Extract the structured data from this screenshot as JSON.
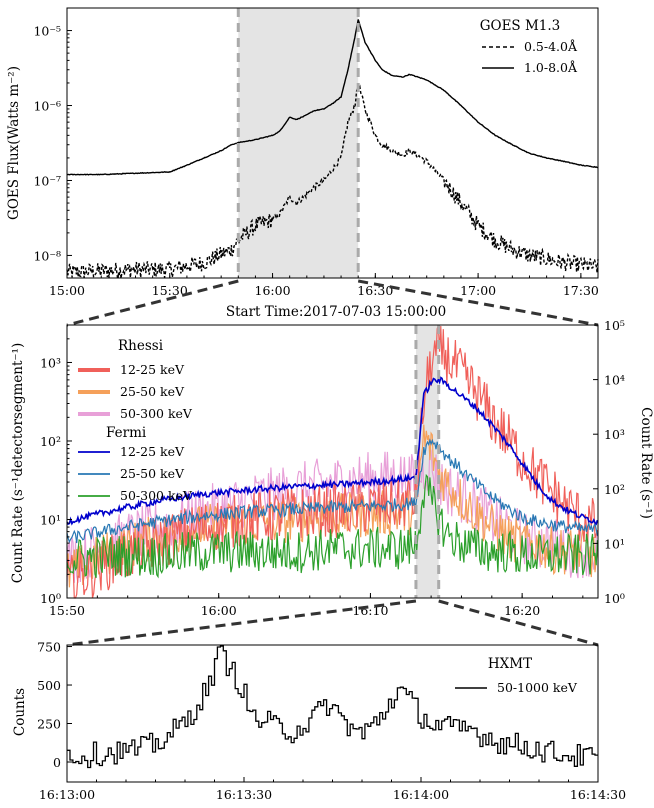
{
  "chart_data": [
    {
      "type": "line",
      "title": "",
      "xlabel": "Start Time:2017-07-03 15:00:00",
      "ylabel": "GOES Flux(Watts m⁻²)",
      "yscale": "log",
      "ylim": [
        5e-09,
        2e-05
      ],
      "xlim": [
        "15:00",
        "17:35"
      ],
      "x_ticks": [
        "15:00",
        "15:30",
        "16:00",
        "16:30",
        "17:00",
        "17:30"
      ],
      "y_ticks": [
        "10⁻⁸",
        "10⁻⁷",
        "10⁻⁶",
        "10⁻⁵"
      ],
      "legend_title": "GOES M1.3",
      "legend_position": "top-right",
      "highlight_span": [
        "15:50",
        "16:25"
      ],
      "x_unit": "minutes after 15:00",
      "series": [
        {
          "name": "0.5-4.0Å",
          "style": "dashed",
          "x": [
            0,
            10,
            20,
            30,
            40,
            48,
            50,
            55,
            60,
            62,
            64,
            65,
            67,
            70,
            72,
            75,
            78,
            80,
            82,
            84,
            85,
            87,
            90,
            92,
            95,
            98,
            100,
            105,
            110,
            115,
            120,
            125,
            130,
            135,
            140,
            145,
            150,
            155
          ],
          "values": [
            6e-09,
            6.2e-09,
            6.5e-09,
            6.5e-09,
            8e-09,
            1.2e-08,
            1.6e-08,
            2.5e-08,
            3e-08,
            3.5e-08,
            5e-08,
            6e-08,
            5e-08,
            6.5e-08,
            8e-08,
            1e-07,
            1.5e-07,
            2e-07,
            6e-07,
            1e-06,
            2e-06,
            9e-07,
            4e-07,
            3e-07,
            2.5e-07,
            2.2e-07,
            2.5e-07,
            1.8e-07,
            1e-07,
            5e-08,
            2.5e-08,
            1.6e-08,
            1.2e-08,
            1e-08,
            9e-09,
            8e-09,
            7.5e-09,
            7e-09
          ]
        },
        {
          "name": "1.0-8.0Å",
          "style": "solid",
          "x": [
            0,
            10,
            20,
            30,
            35,
            40,
            45,
            48,
            50,
            55,
            60,
            62,
            64,
            65,
            67,
            70,
            72,
            75,
            78,
            80,
            82,
            84,
            85,
            87,
            90,
            92,
            95,
            98,
            100,
            105,
            110,
            115,
            120,
            125,
            130,
            135,
            140,
            145,
            150,
            155
          ],
          "values": [
            1.2e-07,
            1.2e-07,
            1.25e-07,
            1.3e-07,
            1.6e-07,
            2e-07,
            2.5e-07,
            3e-07,
            3.2e-07,
            3.5e-07,
            4e-07,
            4.5e-07,
            6e-07,
            7e-07,
            6.5e-07,
            7.5e-07,
            8.5e-07,
            9e-07,
            1.1e-06,
            1.3e-06,
            3e-06,
            8e-06,
            1.4e-05,
            7e-06,
            4e-06,
            3e-06,
            2.5e-06,
            2.4e-06,
            2.6e-06,
            2.2e-06,
            1.6e-06,
            1e-06,
            6e-07,
            4e-07,
            3e-07,
            2.3e-07,
            2e-07,
            1.8e-07,
            1.6e-07,
            1.5e-07
          ]
        }
      ]
    },
    {
      "type": "line",
      "title": "",
      "xlabel": "",
      "ylabel": "Count Rate (s⁻¹detectorsegment⁻¹)",
      "y2label": "Count Rate (s⁻¹)",
      "yscale": "log",
      "ylim": [
        1,
        3000
      ],
      "y2lim": [
        1,
        100000
      ],
      "xlim": [
        "15:50",
        "16:25"
      ],
      "x_ticks": [
        "15:50",
        "16:00",
        "16:10",
        "16:20"
      ],
      "y_ticks": [
        "10⁰",
        "10¹",
        "10²",
        "10³"
      ],
      "y2_ticks": [
        "10⁰",
        "10¹",
        "10²",
        "10³",
        "10⁴",
        "10⁵"
      ],
      "legend_position": "top-left",
      "highlight_span": [
        "16:13",
        "16:14:30"
      ],
      "x_unit": "minutes after 15:50",
      "legend_groups": [
        "Rhessi",
        "Fermi"
      ],
      "series": [
        {
          "group": "Rhessi",
          "name": "12-25 keV",
          "color": "#f0605a",
          "axis": "left",
          "x": [
            0,
            3,
            6,
            9,
            12,
            15,
            18,
            21,
            22,
            23,
            23.5,
            24,
            24.5,
            25,
            26,
            27,
            28,
            29,
            30,
            31,
            32,
            33,
            34,
            35
          ],
          "values": [
            1.5,
            3,
            5,
            8,
            10,
            12,
            13,
            15,
            16,
            18,
            300,
            1000,
            1400,
            1200,
            700,
            400,
            200,
            110,
            60,
            35,
            22,
            14,
            10,
            8
          ]
        },
        {
          "group": "Rhessi",
          "name": "25-50 keV",
          "color": "#f5a05a",
          "axis": "left",
          "x": [
            0,
            3,
            6,
            9,
            12,
            15,
            18,
            21,
            22,
            23,
            23.5,
            24,
            24.5,
            25,
            26,
            27,
            28,
            29,
            30,
            31,
            32,
            33,
            34,
            35
          ],
          "values": [
            2,
            4,
            6,
            8,
            9,
            10,
            11,
            12,
            12,
            13,
            110,
            80,
            40,
            30,
            18,
            12,
            8,
            6,
            5,
            5,
            4,
            4,
            4,
            3
          ]
        },
        {
          "group": "Rhessi",
          "name": "50-300 keV",
          "color": "#e8a0d8",
          "axis": "left",
          "x": [
            0,
            3,
            6,
            9,
            12,
            15,
            18,
            21,
            22,
            23,
            23.5,
            24,
            24.5,
            25,
            26,
            27,
            28,
            29,
            30,
            31,
            32,
            33,
            34,
            35
          ],
          "values": [
            3,
            5,
            8,
            12,
            18,
            24,
            30,
            35,
            35,
            30,
            45,
            50,
            30,
            25,
            20,
            15,
            10,
            8,
            6,
            5,
            5,
            4,
            4,
            4
          ]
        },
        {
          "group": "Fermi",
          "name": "12-25 keV",
          "color": "#0000cc",
          "axis": "right",
          "x": [
            0,
            3,
            6,
            9,
            12,
            15,
            18,
            21,
            22,
            23,
            23.5,
            24,
            24.5,
            25,
            26,
            27,
            28,
            29,
            30,
            31,
            32,
            33,
            34,
            35
          ],
          "values": [
            25,
            40,
            60,
            80,
            95,
            110,
            120,
            140,
            150,
            160,
            5000,
            9000,
            10000,
            8500,
            5000,
            3000,
            1500,
            700,
            300,
            120,
            60,
            40,
            30,
            25
          ]
        },
        {
          "group": "Fermi",
          "name": "25-50 keV",
          "color": "#2878b4",
          "axis": "right",
          "x": [
            0,
            3,
            6,
            9,
            12,
            15,
            18,
            21,
            22,
            23,
            23.5,
            24,
            24.5,
            25,
            26,
            27,
            28,
            29,
            30,
            31,
            32,
            33,
            34,
            35
          ],
          "values": [
            12,
            18,
            25,
            32,
            38,
            42,
            46,
            50,
            52,
            55,
            500,
            800,
            600,
            400,
            220,
            120,
            70,
            45,
            30,
            25,
            22,
            20,
            18,
            18
          ]
        },
        {
          "group": "Fermi",
          "name": "50-300 keV",
          "color": "#2ca02c",
          "axis": "right",
          "x": [
            0,
            3,
            6,
            9,
            12,
            15,
            18,
            21,
            22,
            23,
            23.5,
            24,
            24.5,
            25,
            26,
            27,
            28,
            29,
            30,
            31,
            32,
            33,
            34,
            35
          ],
          "values": [
            5,
            6,
            6,
            7,
            7,
            7,
            8,
            8,
            8,
            9,
            100,
            60,
            30,
            15,
            10,
            8,
            7,
            7,
            6,
            6,
            6,
            6,
            6,
            6
          ]
        }
      ]
    },
    {
      "type": "line",
      "title": "",
      "xlabel": "",
      "ylabel": "Counts",
      "ylim": [
        -130,
        760
      ],
      "xlim": [
        "16:13:00",
        "16:14:30"
      ],
      "x_ticks": [
        "16:13:00",
        "16:13:30",
        "16:14:00",
        "16:14:30"
      ],
      "y_ticks": [
        "0",
        "250",
        "500",
        "750"
      ],
      "legend_title": "HXMT",
      "legend_position": "top-right",
      "x_unit": "seconds after 16:13:00",
      "series": [
        {
          "name": "50-1000 keV",
          "style": "steps",
          "color": "#000000",
          "x": [
            0,
            3,
            6,
            9,
            12,
            15,
            18,
            20,
            22,
            24,
            25,
            26,
            27,
            28,
            29,
            30,
            31,
            32,
            34,
            36,
            38,
            40,
            42,
            44,
            46,
            48,
            50,
            52,
            54,
            56,
            58,
            60,
            62,
            64,
            66,
            68,
            70,
            72,
            74,
            76,
            78,
            80,
            82,
            84,
            86,
            88,
            90
          ],
          "values": [
            50,
            40,
            60,
            70,
            80,
            120,
            200,
            260,
            380,
            500,
            650,
            700,
            640,
            580,
            520,
            430,
            300,
            280,
            250,
            220,
            200,
            240,
            300,
            380,
            300,
            220,
            180,
            250,
            350,
            480,
            390,
            300,
            240,
            230,
            200,
            220,
            180,
            150,
            120,
            110,
            100,
            80,
            60,
            50,
            40,
            30,
            25
          ]
        }
      ]
    }
  ]
}
